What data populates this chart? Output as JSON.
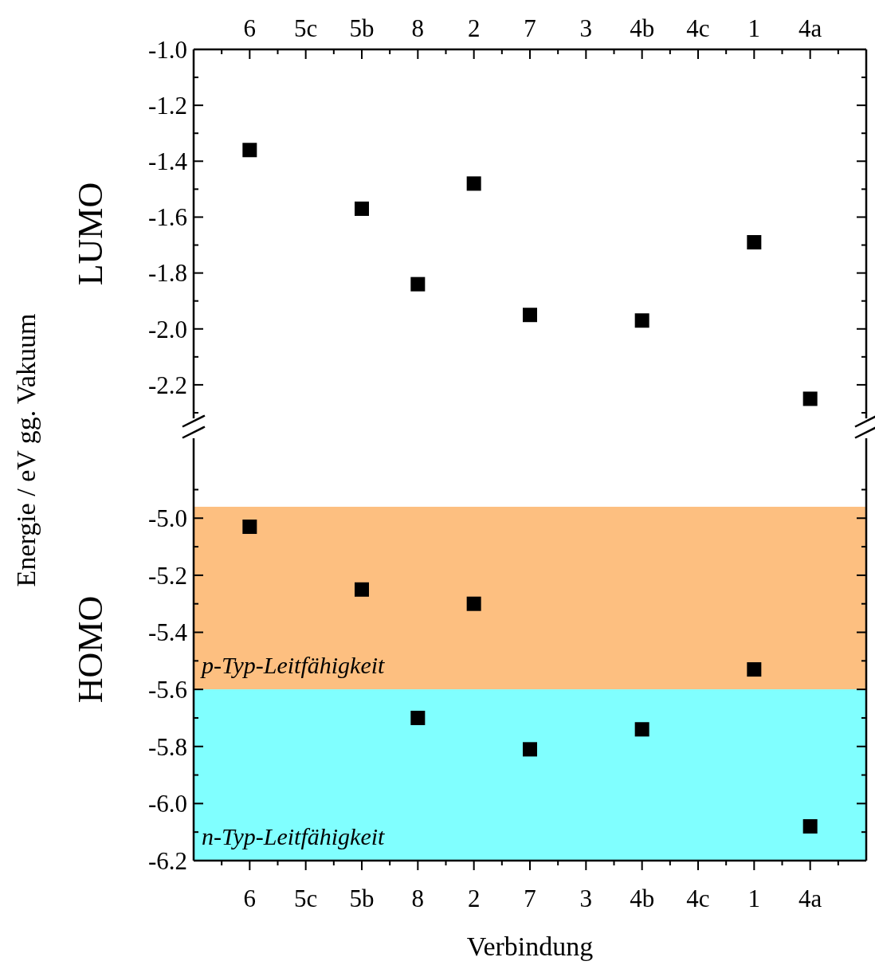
{
  "chart_data": [
    {
      "type": "scatter",
      "ylabel": "LUMO",
      "annotations": [
        "Energie / eV gg. Vakuum"
      ],
      "categories": [
        "6",
        "5c",
        "5b",
        "8",
        "2",
        "7",
        "3",
        "4b",
        "4c",
        "1",
        "4a"
      ],
      "series": [
        {
          "color": "#000000",
          "values": [
            -1.36,
            null,
            -1.57,
            -1.84,
            -1.48,
            -1.95,
            null,
            -1.97,
            null,
            -1.69,
            -2.25
          ]
        }
      ],
      "ylim": [
        -2.32,
        -1.0
      ],
      "yticks": [
        {
          "value": -1.0,
          "label": "-1.0"
        },
        {
          "value": -1.1,
          "label": null
        },
        -1.2,
        {
          "value": -1.3,
          "label": null
        },
        -1.4,
        {
          "value": -1.5,
          "label": null
        },
        -1.6,
        {
          "value": -1.7,
          "label": null
        },
        -1.8,
        {
          "value": -1.9,
          "label": null
        },
        {
          "value": -2.0,
          "label": "-2.0"
        },
        {
          "value": -2.1,
          "label": null
        },
        -2.2,
        {
          "value": -2.3,
          "label": null
        }
      ],
      "marker": "square",
      "grid": false
    },
    {
      "type": "scatter",
      "ylabel": "HOMO",
      "xlabel": "Verbindung",
      "categories": [
        "6",
        "5c",
        "5b",
        "8",
        "2",
        "7",
        "3",
        "4b",
        "4c",
        "1",
        "4a"
      ],
      "series": [
        {
          "color": "#000000",
          "values": [
            -5.03,
            null,
            -5.25,
            -5.7,
            -5.3,
            -5.81,
            null,
            -5.74,
            null,
            -5.53,
            -6.08
          ]
        }
      ],
      "ylim": [
        -6.2,
        -4.72
      ],
      "yticks": [
        {
          "value": -4.9,
          "label": null
        },
        {
          "value": -5.0,
          "label": "-5.0"
        },
        {
          "value": -5.1,
          "label": null
        },
        -5.2,
        {
          "value": -5.3,
          "label": null
        },
        -5.4,
        {
          "value": -5.5,
          "label": null
        },
        -5.6,
        {
          "value": -5.7,
          "label": null
        },
        -5.8,
        {
          "value": -5.9,
          "label": null
        },
        {
          "value": -6.0,
          "label": "-6.0"
        },
        {
          "value": -6.1,
          "label": null
        },
        -6.2
      ],
      "bands": [
        {
          "axis": "y",
          "from": -4.96,
          "to": -5.6,
          "label": "p-Typ-Leitfähigkeit",
          "color": "#fdbf80"
        },
        {
          "axis": "y",
          "from": -5.6,
          "to": -6.2,
          "label": "n-Typ-Leitfähigkeit",
          "color": "#80ffff"
        }
      ],
      "marker": "square",
      "grid": false
    }
  ]
}
